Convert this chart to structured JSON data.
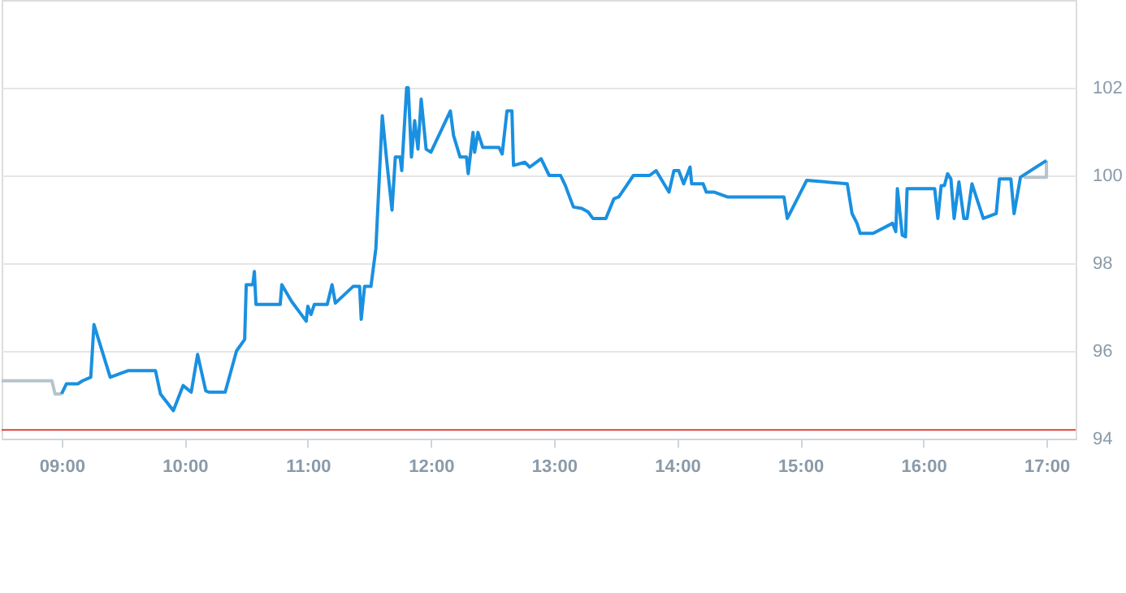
{
  "chart_data": {
    "type": "line",
    "xlim": [
      8.513,
      17.237
    ],
    "ylim": [
      94,
      104
    ],
    "xticks": [
      {
        "value": 9,
        "label": "09:00"
      },
      {
        "value": 10,
        "label": "10:00"
      },
      {
        "value": 11,
        "label": "11:00"
      },
      {
        "value": 12,
        "label": "12:00"
      },
      {
        "value": 13,
        "label": "13:00"
      },
      {
        "value": 14,
        "label": "14:00"
      },
      {
        "value": 15,
        "label": "15:00"
      },
      {
        "value": 16,
        "label": "16:00"
      },
      {
        "value": 17,
        "label": "17:00"
      }
    ],
    "yticks": [
      94,
      96,
      98,
      100,
      102
    ],
    "grid": "y",
    "legend": false,
    "marker": "none",
    "line_style": "solid",
    "ref_lines": [
      {
        "axis": "y",
        "value": 94.2,
        "color": "#e0413a"
      }
    ],
    "series": [
      {
        "color": "#b8c4cc",
        "x": [
          8.513,
          8.921,
          8.947,
          9.0
        ],
        "values": [
          95.32,
          95.32,
          95.02,
          95.02
        ]
      },
      {
        "color": "#b8c4cc",
        "x": [
          16.816,
          17.0,
          17.0
        ],
        "values": [
          99.96,
          99.96,
          100.34
        ]
      },
      {
        "color": "#1a90e0",
        "x": [
          9.0,
          9.039,
          9.132,
          9.171,
          9.237,
          9.263,
          9.395,
          9.539,
          9.763,
          9.803,
          9.908,
          9.987,
          10.053,
          10.105,
          10.171,
          10.197,
          10.329,
          10.421,
          10.487,
          10.5,
          10.553,
          10.566,
          10.579,
          10.776,
          10.789,
          10.868,
          10.947,
          10.987,
          11.0,
          11.026,
          11.053,
          11.158,
          11.197,
          11.224,
          11.368,
          11.421,
          11.434,
          11.461,
          11.513,
          11.553,
          11.605,
          11.645,
          11.684,
          11.711,
          11.75,
          11.763,
          11.803,
          11.816,
          11.842,
          11.868,
          11.895,
          11.921,
          11.961,
          12.0,
          12.158,
          12.184,
          12.237,
          12.289,
          12.303,
          12.342,
          12.355,
          12.382,
          12.421,
          12.553,
          12.579,
          12.618,
          12.658,
          12.671,
          12.763,
          12.803,
          12.895,
          12.961,
          13.053,
          13.092,
          13.132,
          13.158,
          13.224,
          13.276,
          13.316,
          13.421,
          13.487,
          13.526,
          13.645,
          13.776,
          13.829,
          13.934,
          13.974,
          14.013,
          14.053,
          14.105,
          14.118,
          14.211,
          14.237,
          14.303,
          14.408,
          14.868,
          14.895,
          15.053,
          15.382,
          15.421,
          15.461,
          15.487,
          15.592,
          15.75,
          15.776,
          15.789,
          15.829,
          15.855,
          15.868,
          16.092,
          16.118,
          16.145,
          16.171,
          16.197,
          16.224,
          16.25,
          16.289,
          16.329,
          16.355,
          16.395,
          16.487,
          16.592,
          16.618,
          16.711,
          16.737,
          16.789,
          17.0
        ],
        "values": [
          95.02,
          95.25,
          95.25,
          95.32,
          95.4,
          96.6,
          95.4,
          95.55,
          95.55,
          95.02,
          94.64,
          95.21,
          95.06,
          95.92,
          95.09,
          95.06,
          95.06,
          96.0,
          96.26,
          97.51,
          97.51,
          97.81,
          97.06,
          97.06,
          97.51,
          97.13,
          96.83,
          96.68,
          97.02,
          96.83,
          97.06,
          97.06,
          97.51,
          97.09,
          97.47,
          97.47,
          96.72,
          97.47,
          97.47,
          98.34,
          101.36,
          100.23,
          99.21,
          100.42,
          100.42,
          100.11,
          102.0,
          102.0,
          100.42,
          101.25,
          100.6,
          101.74,
          100.6,
          100.53,
          101.47,
          100.91,
          100.42,
          100.42,
          100.04,
          100.98,
          100.53,
          100.98,
          100.64,
          100.64,
          100.49,
          101.47,
          101.47,
          100.23,
          100.3,
          100.19,
          100.38,
          100.0,
          100.0,
          99.77,
          99.47,
          99.28,
          99.25,
          99.17,
          99.02,
          99.02,
          99.47,
          99.51,
          100.0,
          100.0,
          100.11,
          99.62,
          100.11,
          100.11,
          99.81,
          100.19,
          99.81,
          99.81,
          99.62,
          99.62,
          99.51,
          99.51,
          99.02,
          99.89,
          99.81,
          99.13,
          98.91,
          98.68,
          98.68,
          98.91,
          98.72,
          99.7,
          98.64,
          98.6,
          99.7,
          99.7,
          99.02,
          99.77,
          99.77,
          100.04,
          99.92,
          99.02,
          99.85,
          99.02,
          99.02,
          99.81,
          99.02,
          99.13,
          99.92,
          99.92,
          99.13,
          99.96,
          100.34
        ]
      }
    ]
  }
}
